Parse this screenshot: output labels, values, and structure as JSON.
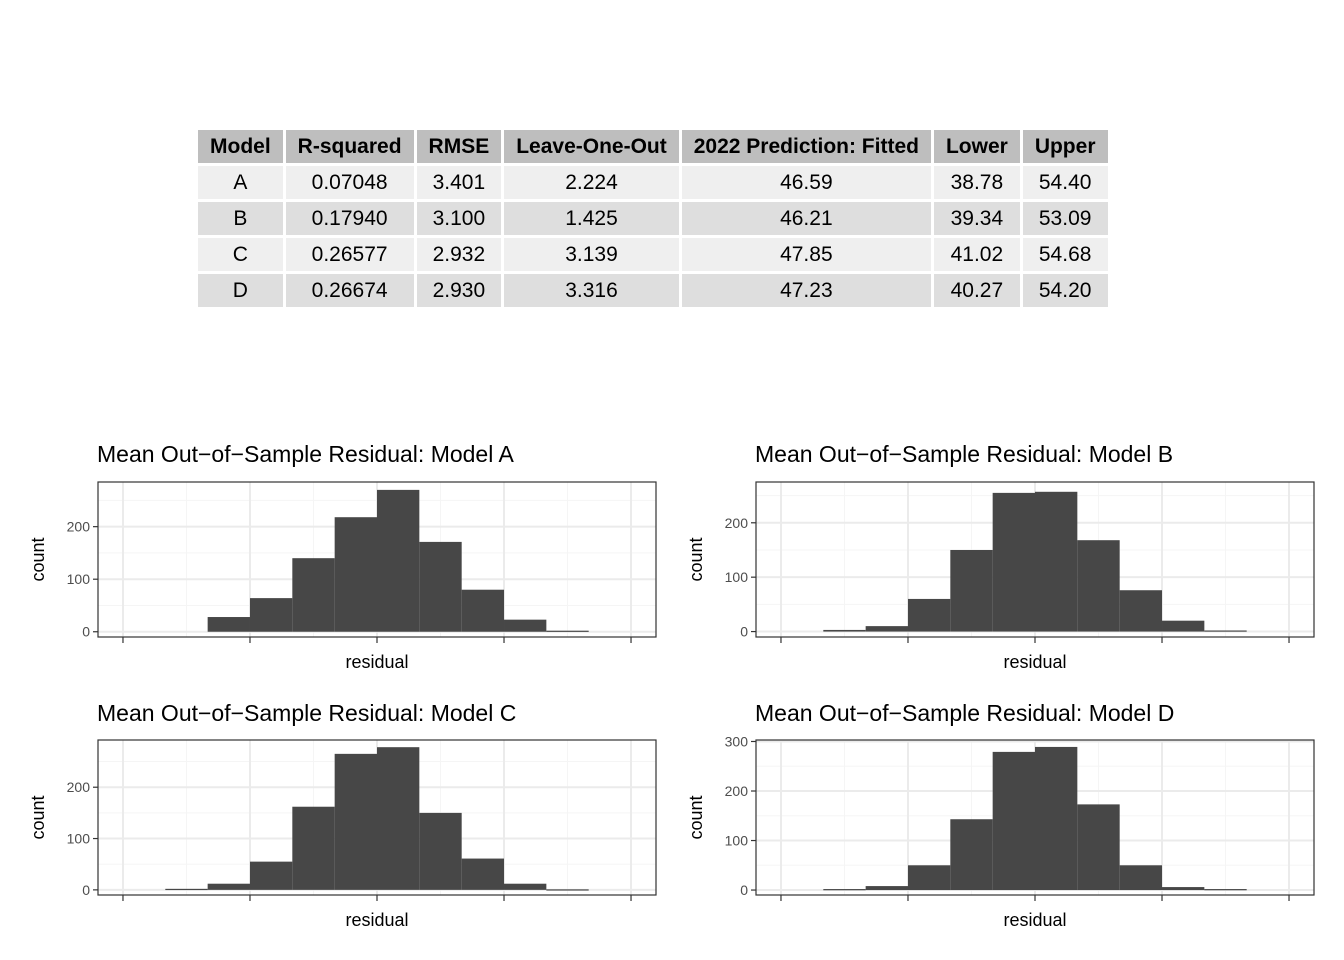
{
  "table": {
    "headers": [
      "Model",
      "R-squared",
      "RMSE",
      "Leave-One-Out",
      "2022 Prediction: Fitted",
      "Lower",
      "Upper"
    ],
    "rows": [
      [
        "A",
        "0.07048",
        "3.401",
        "2.224",
        "46.59",
        "38.78",
        "54.40"
      ],
      [
        "B",
        "0.17940",
        "3.100",
        "1.425",
        "46.21",
        "39.34",
        "53.09"
      ],
      [
        "C",
        "0.26577",
        "2.932",
        "3.139",
        "47.85",
        "41.02",
        "54.68"
      ],
      [
        "D",
        "0.26674",
        "2.930",
        "3.316",
        "47.23",
        "40.27",
        "54.20"
      ]
    ]
  },
  "chart_data": [
    {
      "type": "bar",
      "title": "Mean Out−of−Sample Residual: Model A",
      "xlabel": "residual",
      "ylabel": "count",
      "x_bin_index": [
        0,
        1,
        2,
        3,
        4,
        5,
        6,
        7,
        8,
        9,
        10,
        11
      ],
      "values": [
        0,
        0,
        28,
        64,
        140,
        218,
        270,
        171,
        80,
        23,
        2,
        0
      ],
      "yticks": [
        0,
        100,
        200
      ],
      "ylim": [
        -10,
        285
      ],
      "grid": true
    },
    {
      "type": "bar",
      "title": "Mean Out−of−Sample Residual: Model B",
      "xlabel": "residual",
      "ylabel": "count",
      "x_bin_index": [
        0,
        1,
        2,
        3,
        4,
        5,
        6,
        7,
        8,
        9,
        10,
        11
      ],
      "values": [
        0,
        3,
        10,
        60,
        150,
        255,
        257,
        168,
        76,
        20,
        2,
        0
      ],
      "yticks": [
        0,
        100,
        200
      ],
      "ylim": [
        -10,
        275
      ],
      "grid": true
    },
    {
      "type": "bar",
      "title": "Mean Out−of−Sample Residual: Model C",
      "xlabel": "residual",
      "ylabel": "count",
      "x_bin_index": [
        0,
        1,
        2,
        3,
        4,
        5,
        6,
        7,
        8,
        9,
        10,
        11
      ],
      "values": [
        0,
        2,
        12,
        55,
        162,
        265,
        278,
        150,
        61,
        12,
        1,
        0
      ],
      "yticks": [
        0,
        100,
        200
      ],
      "ylim": [
        -10,
        292
      ],
      "grid": true
    },
    {
      "type": "bar",
      "title": "Mean Out−of−Sample Residual: Model D",
      "xlabel": "residual",
      "ylabel": "count",
      "x_bin_index": [
        0,
        1,
        2,
        3,
        4,
        5,
        6,
        7,
        8,
        9,
        10,
        11
      ],
      "values": [
        0,
        2,
        8,
        50,
        143,
        279,
        289,
        173,
        50,
        6,
        2,
        0
      ],
      "yticks": [
        0,
        100,
        200,
        300
      ],
      "ylim": [
        -10,
        303
      ],
      "grid": true
    }
  ],
  "colors": {
    "bar": "#474747",
    "panel_border": "#333333",
    "grid_major": "#ebebeb",
    "grid_minor": "#f5f5f5",
    "tick": "#333333",
    "tick_label": "#4d4d4d",
    "header_bg": "#bebebe",
    "row_odd_bg": "#efefef",
    "row_even_bg": "#dedede"
  }
}
